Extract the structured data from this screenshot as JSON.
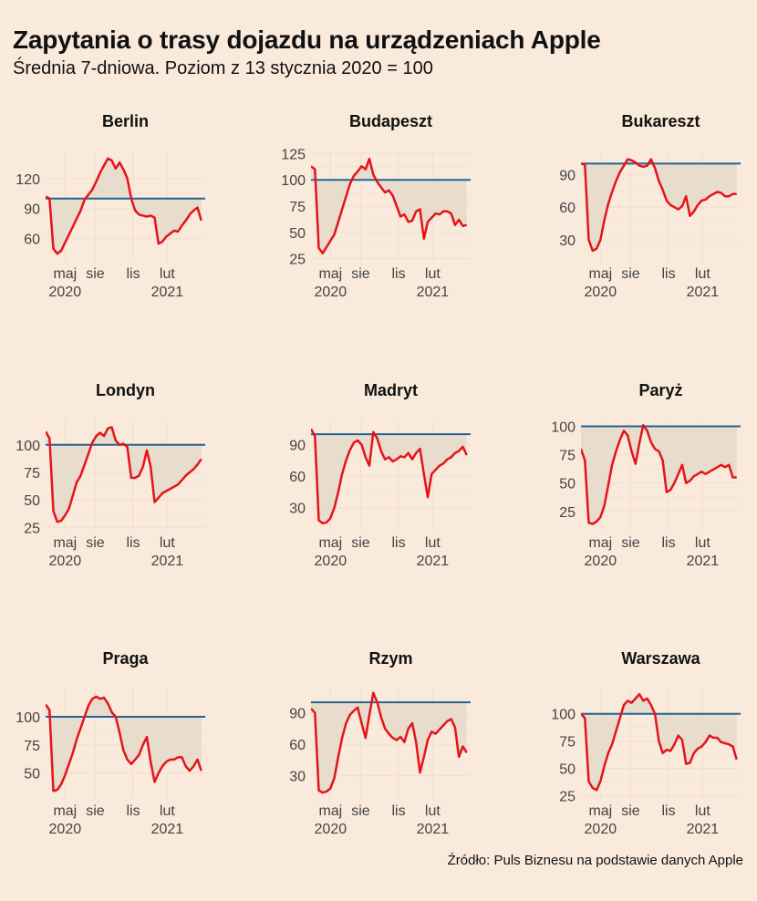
{
  "title": "Zapytania o trasy dojazdu na urządzeniach Apple",
  "subtitle": "Średnia 7-dniowa. Poziom z 13 stycznia 2020 = 100",
  "source": "Źródło: Puls Biznesu na podstawie danych Apple",
  "colors": {
    "background": "#f9eadb",
    "line": "#e4141b",
    "baseline": "#236497",
    "fill": "#e5dacb",
    "grid": "#f2dfcf"
  },
  "chart_data": [
    {
      "type": "area",
      "panel": "Berlin",
      "x_tick_labels": [
        [
          "maj",
          "2020"
        ],
        [
          "sie",
          ""
        ],
        [
          "lis",
          ""
        ],
        [
          "lut",
          "2021"
        ]
      ],
      "y_ticks": [
        60,
        90,
        120
      ],
      "ylim": [
        37,
        148
      ],
      "baseline": 100,
      "x": [
        0,
        4,
        8,
        12,
        16,
        20,
        24,
        28,
        32,
        36,
        40,
        44,
        48,
        52,
        56,
        60,
        64,
        68,
        72,
        76,
        80,
        84,
        88,
        92,
        96,
        100,
        104,
        108,
        112,
        116,
        120,
        124,
        128,
        132,
        136,
        140,
        144,
        148,
        152,
        156,
        160
      ],
      "values": [
        102,
        100,
        50,
        45,
        48,
        56,
        64,
        72,
        80,
        88,
        99,
        104,
        109,
        117,
        126,
        133,
        140,
        138,
        130,
        136,
        129,
        120,
        100,
        88,
        84,
        83,
        82,
        83,
        81,
        55,
        57,
        62,
        65,
        68,
        67,
        73,
        78,
        84,
        88,
        91,
        78
      ]
    },
    {
      "type": "area",
      "panel": "Budapeszt",
      "x_tick_labels": [
        [
          "maj",
          "2020"
        ],
        [
          "sie",
          ""
        ],
        [
          "lis",
          ""
        ],
        [
          "lut",
          "2021"
        ]
      ],
      "y_ticks": [
        25,
        50,
        75,
        100,
        125
      ],
      "ylim": [
        22,
        128
      ],
      "baseline": 100,
      "x": [
        0,
        4,
        8,
        12,
        16,
        20,
        24,
        28,
        32,
        36,
        40,
        44,
        48,
        52,
        56,
        60,
        64,
        68,
        72,
        76,
        80,
        84,
        88,
        92,
        96,
        100,
        104,
        108,
        112,
        116,
        120,
        124,
        128,
        132,
        136,
        140,
        144,
        148,
        152,
        156,
        160
      ],
      "values": [
        113,
        110,
        35,
        30,
        36,
        42,
        48,
        60,
        72,
        84,
        96,
        104,
        108,
        113,
        110,
        120,
        105,
        98,
        93,
        88,
        90,
        85,
        75,
        65,
        67,
        60,
        61,
        70,
        72,
        44,
        60,
        64,
        68,
        67,
        70,
        70,
        68,
        57,
        62,
        56,
        57
      ]
    },
    {
      "type": "area",
      "panel": "Bukareszt",
      "x_tick_labels": [
        [
          "maj",
          "2020"
        ],
        [
          "sie",
          ""
        ],
        [
          "lis",
          ""
        ],
        [
          "lut",
          "2021"
        ]
      ],
      "y_ticks": [
        30,
        60,
        90
      ],
      "ylim": [
        10,
        112
      ],
      "baseline": 100,
      "x": [
        0,
        4,
        8,
        12,
        16,
        20,
        24,
        28,
        32,
        36,
        40,
        44,
        48,
        52,
        56,
        60,
        64,
        68,
        72,
        76,
        80,
        84,
        88,
        92,
        96,
        100,
        104,
        108,
        112,
        116,
        120,
        124,
        128,
        132,
        136,
        140,
        144,
        148,
        152,
        156,
        160
      ],
      "values": [
        100,
        99,
        30,
        20,
        22,
        30,
        48,
        63,
        74,
        84,
        92,
        98,
        104,
        103,
        101,
        98,
        97,
        98,
        104,
        96,
        84,
        76,
        66,
        62,
        60,
        58,
        61,
        70,
        52,
        56,
        62,
        66,
        67,
        70,
        72,
        74,
        73,
        70,
        70,
        72,
        72
      ]
    },
    {
      "type": "area",
      "panel": "Londyn",
      "x_tick_labels": [
        [
          "maj",
          "2020"
        ],
        [
          "sie",
          ""
        ],
        [
          "lis",
          ""
        ],
        [
          "lut",
          "2021"
        ]
      ],
      "y_ticks": [
        25,
        50,
        75,
        100
      ],
      "ylim": [
        22,
        123
      ],
      "baseline": 100,
      "x": [
        0,
        4,
        8,
        12,
        16,
        20,
        24,
        28,
        32,
        36,
        40,
        44,
        48,
        52,
        56,
        60,
        64,
        68,
        72,
        76,
        80,
        84,
        88,
        92,
        96,
        100,
        104,
        108,
        112,
        116,
        120,
        124,
        128,
        132,
        136,
        140,
        144,
        148,
        152,
        156,
        160
      ],
      "values": [
        112,
        106,
        40,
        30,
        31,
        36,
        42,
        54,
        66,
        72,
        82,
        92,
        102,
        108,
        111,
        108,
        115,
        116,
        104,
        100,
        101,
        98,
        70,
        70,
        72,
        80,
        95,
        80,
        48,
        52,
        56,
        58,
        60,
        62,
        64,
        68,
        72,
        75,
        78,
        82,
        87
      ]
    },
    {
      "type": "area",
      "panel": "Madryt",
      "x_tick_labels": [
        [
          "maj",
          "2020"
        ],
        [
          "sie",
          ""
        ],
        [
          "lis",
          ""
        ],
        [
          "lut",
          "2021"
        ]
      ],
      "y_ticks": [
        30,
        60,
        90
      ],
      "ylim": [
        8,
        114
      ],
      "baseline": 100,
      "x": [
        0,
        4,
        8,
        12,
        16,
        20,
        24,
        28,
        32,
        36,
        40,
        44,
        48,
        52,
        56,
        60,
        64,
        68,
        72,
        76,
        80,
        84,
        88,
        92,
        96,
        100,
        104,
        108,
        112,
        116,
        120,
        124,
        128,
        132,
        136,
        140,
        144,
        148,
        152,
        156,
        160
      ],
      "values": [
        105,
        98,
        18,
        15,
        16,
        20,
        30,
        45,
        62,
        75,
        85,
        92,
        94,
        90,
        78,
        70,
        102,
        96,
        84,
        76,
        78,
        74,
        76,
        79,
        78,
        82,
        76,
        82,
        86,
        62,
        40,
        62,
        66,
        70,
        72,
        76,
        78,
        82,
        84,
        88,
        80
      ]
    },
    {
      "type": "area",
      "panel": "Paryż",
      "x_tick_labels": [
        [
          "maj",
          "2020"
        ],
        [
          "sie",
          ""
        ],
        [
          "lis",
          ""
        ],
        [
          "lut",
          "2021"
        ]
      ],
      "y_ticks": [
        25,
        50,
        75,
        100
      ],
      "ylim": [
        8,
        106
      ],
      "baseline": 100,
      "x": [
        0,
        4,
        8,
        12,
        16,
        20,
        24,
        28,
        32,
        36,
        40,
        44,
        48,
        52,
        56,
        60,
        64,
        68,
        72,
        76,
        80,
        84,
        88,
        92,
        96,
        100,
        104,
        108,
        112,
        116,
        120,
        124,
        128,
        132,
        136,
        140,
        144,
        148,
        152,
        156,
        160
      ],
      "values": [
        80,
        70,
        15,
        14,
        16,
        20,
        30,
        48,
        66,
        78,
        88,
        96,
        92,
        78,
        67,
        85,
        101,
        96,
        86,
        80,
        78,
        70,
        42,
        44,
        50,
        58,
        66,
        50,
        52,
        56,
        58,
        60,
        58,
        60,
        62,
        64,
        66,
        64,
        66,
        55,
        55
      ]
    },
    {
      "type": "area",
      "panel": "Praga",
      "x_tick_labels": [
        [
          "maj",
          "2020"
        ],
        [
          "sie",
          ""
        ],
        [
          "lis",
          ""
        ],
        [
          "lut",
          "2021"
        ]
      ],
      "y_ticks": [
        50,
        75,
        100
      ],
      "ylim": [
        27,
        126
      ],
      "baseline": 100,
      "x": [
        0,
        4,
        8,
        12,
        16,
        20,
        24,
        28,
        32,
        36,
        40,
        44,
        48,
        52,
        56,
        60,
        64,
        68,
        72,
        76,
        80,
        84,
        88,
        92,
        96,
        100,
        104,
        108,
        112,
        116,
        120,
        124,
        128,
        132,
        136,
        140,
        144,
        148,
        152,
        156,
        160
      ],
      "values": [
        111,
        106,
        34,
        35,
        40,
        48,
        58,
        68,
        80,
        90,
        100,
        110,
        116,
        118,
        116,
        117,
        112,
        104,
        100,
        86,
        70,
        62,
        58,
        62,
        66,
        75,
        82,
        60,
        42,
        50,
        56,
        60,
        62,
        62,
        64,
        64,
        56,
        52,
        56,
        62,
        52
      ]
    },
    {
      "type": "area",
      "panel": "Rzym",
      "x_tick_labels": [
        [
          "maj",
          "2020"
        ],
        [
          "sie",
          ""
        ],
        [
          "lis",
          ""
        ],
        [
          "lut",
          "2021"
        ]
      ],
      "y_ticks": [
        30,
        60,
        90
      ],
      "ylim": [
        8,
        114
      ],
      "baseline": 100,
      "x": [
        0,
        4,
        8,
        12,
        16,
        20,
        24,
        28,
        32,
        36,
        40,
        44,
        48,
        52,
        56,
        60,
        64,
        68,
        72,
        76,
        80,
        84,
        88,
        92,
        96,
        100,
        104,
        108,
        112,
        116,
        120,
        124,
        128,
        132,
        136,
        140,
        144,
        148,
        152,
        156,
        160
      ],
      "values": [
        94,
        90,
        16,
        14,
        15,
        18,
        28,
        48,
        66,
        80,
        88,
        92,
        95,
        80,
        66,
        88,
        109,
        100,
        86,
        75,
        70,
        66,
        64,
        67,
        62,
        75,
        80,
        62,
        33,
        48,
        64,
        72,
        70,
        74,
        78,
        82,
        84,
        76,
        48,
        58,
        52
      ]
    },
    {
      "type": "area",
      "panel": "Warszawa",
      "x_tick_labels": [
        [
          "maj",
          "2020"
        ],
        [
          "sie",
          ""
        ],
        [
          "lis",
          ""
        ],
        [
          "lut",
          "2021"
        ]
      ],
      "y_ticks": [
        25,
        50,
        75,
        100
      ],
      "ylim": [
        22,
        124
      ],
      "baseline": 100,
      "x": [
        0,
        4,
        8,
        12,
        16,
        20,
        24,
        28,
        32,
        36,
        40,
        44,
        48,
        52,
        56,
        60,
        64,
        68,
        72,
        76,
        80,
        84,
        88,
        92,
        96,
        100,
        104,
        108,
        112,
        116,
        120,
        124,
        128,
        132,
        136,
        140,
        144,
        148,
        152,
        156,
        160
      ],
      "values": [
        100,
        96,
        38,
        32,
        30,
        38,
        52,
        64,
        72,
        84,
        96,
        108,
        112,
        110,
        114,
        118,
        112,
        114,
        108,
        100,
        75,
        64,
        67,
        66,
        72,
        80,
        76,
        54,
        55,
        64,
        68,
        70,
        74,
        80,
        78,
        78,
        74,
        73,
        72,
        70,
        58
      ]
    }
  ]
}
